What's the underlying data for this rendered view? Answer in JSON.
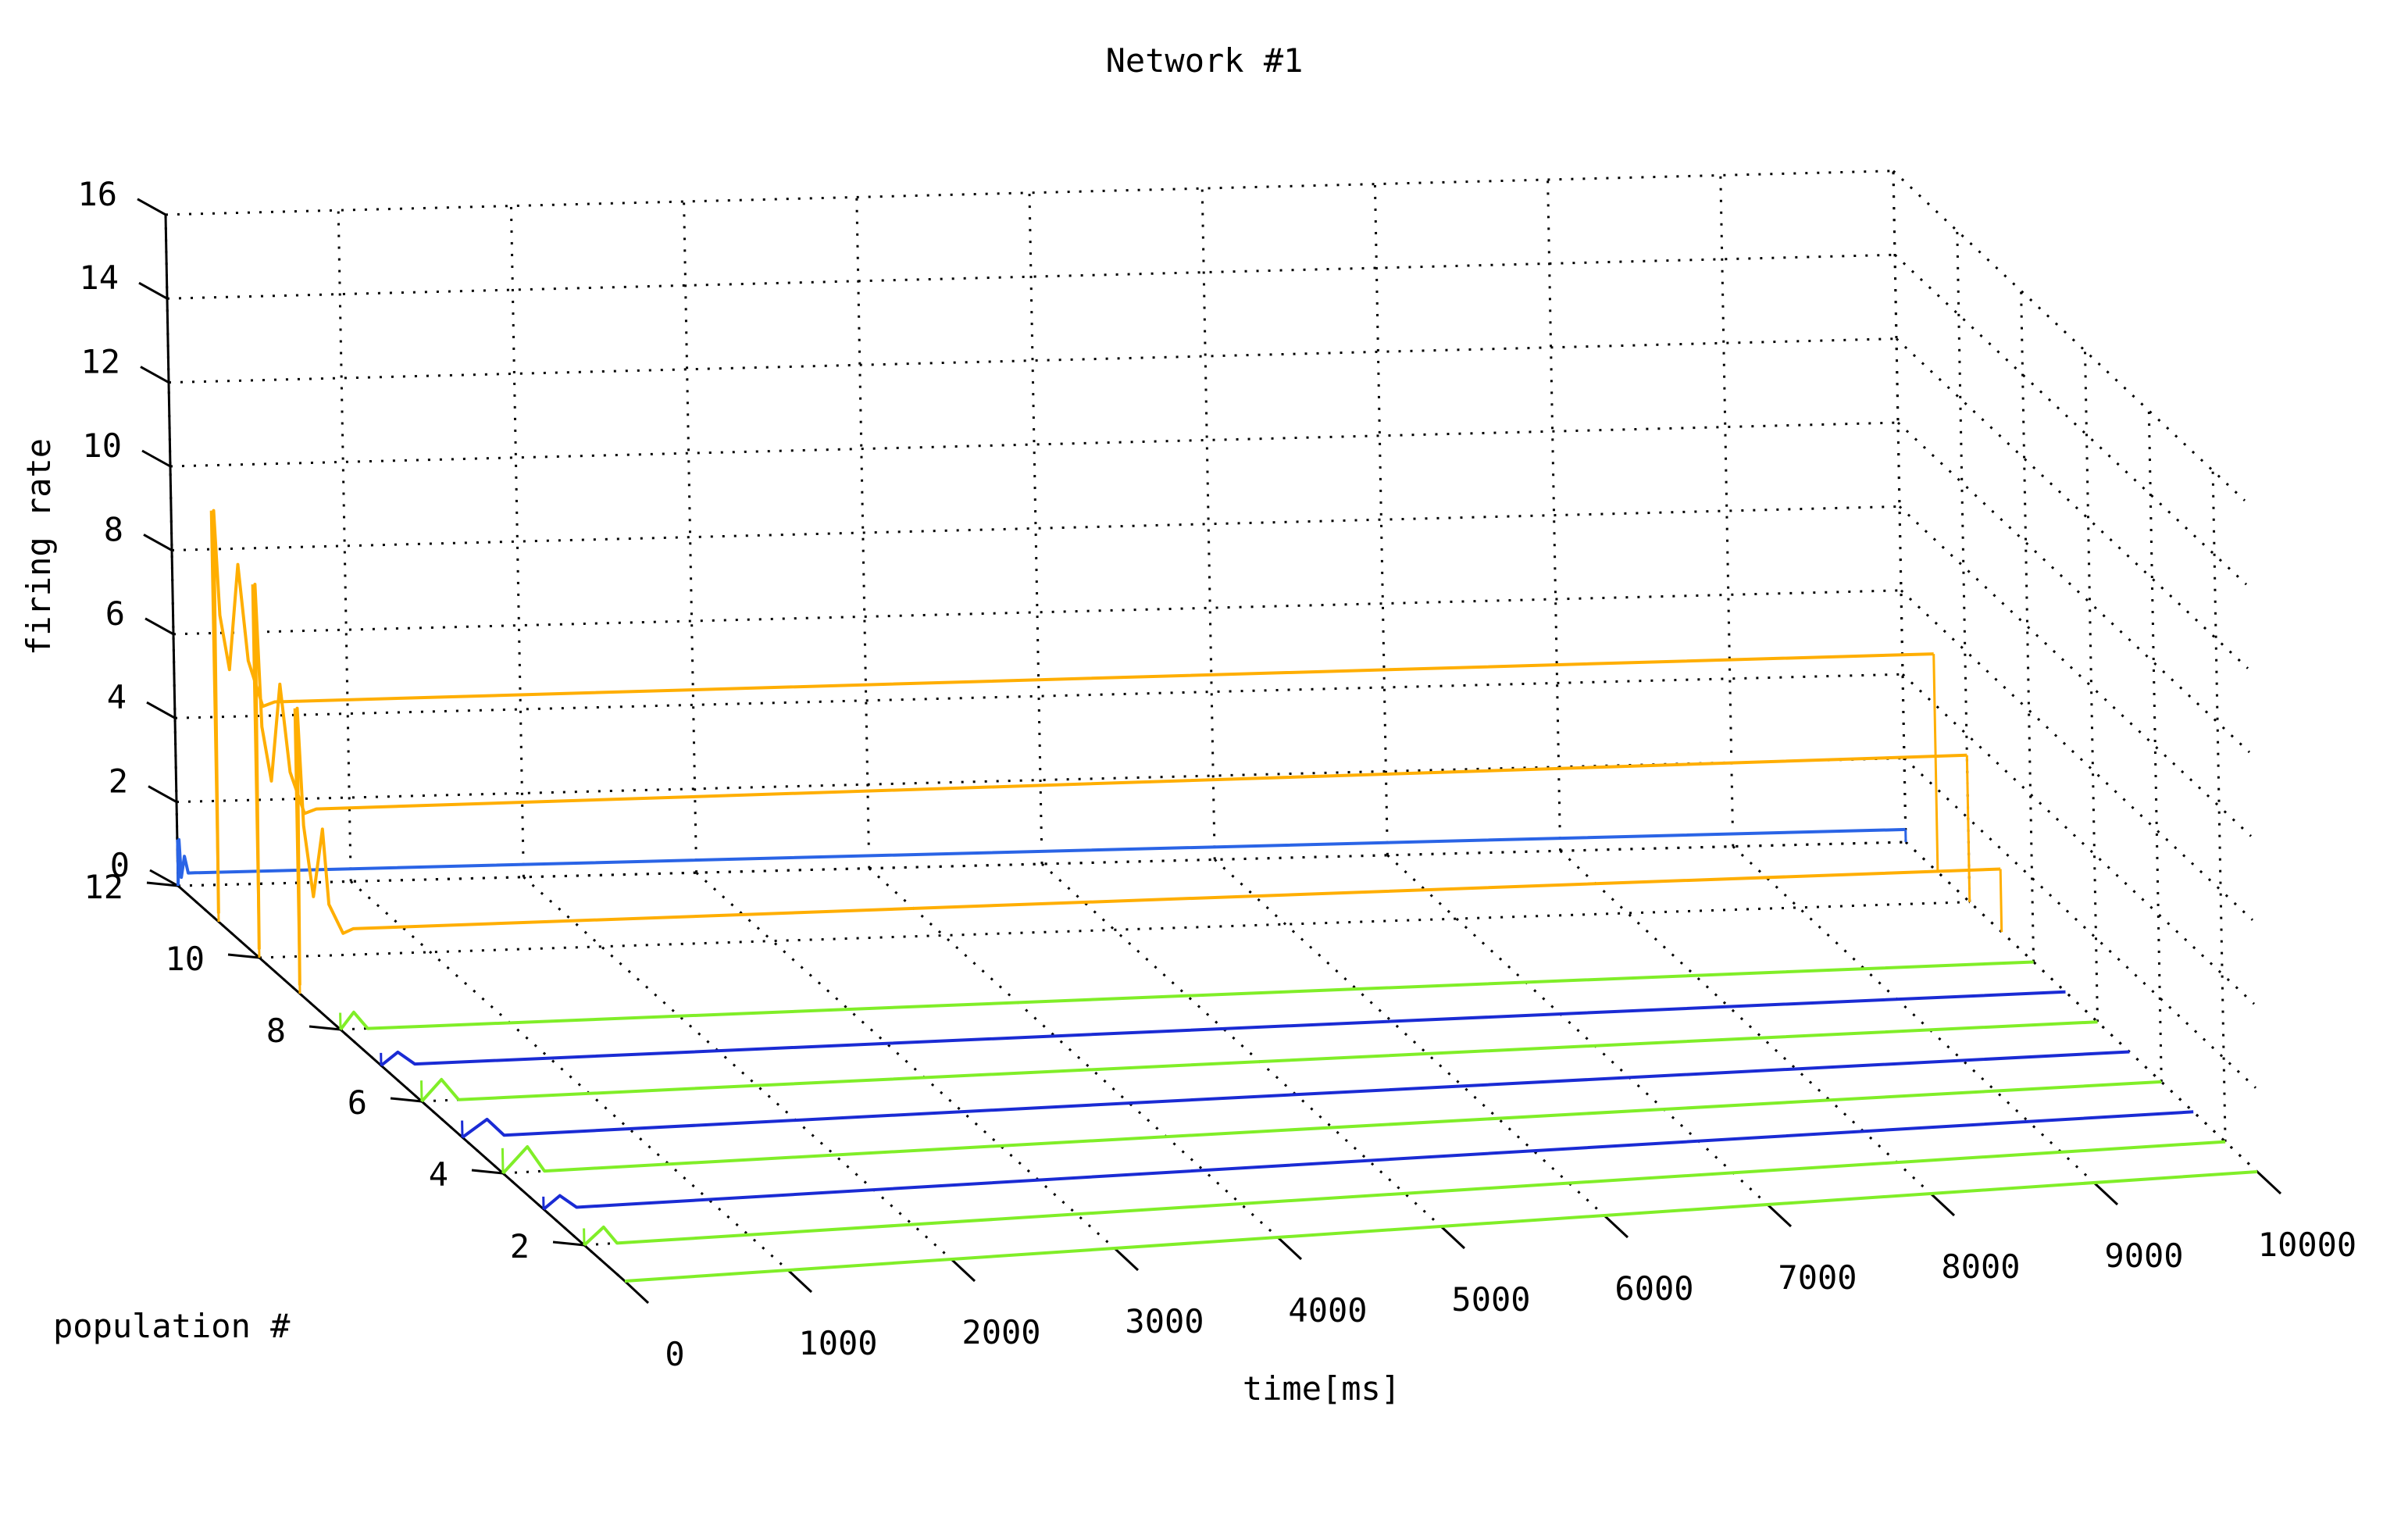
{
  "chart_data": {
    "type": "line",
    "projection": "3d-waterfall",
    "title": "Network #1",
    "xlabel": "time[ms]",
    "ylabel": "population #",
    "zlabel": "firing rate",
    "xlim": [
      0,
      10000
    ],
    "ylim": [
      1,
      12
    ],
    "zlim": [
      0,
      16
    ],
    "x_ticks": [
      "0",
      "1000",
      "2000",
      "3000",
      "4000",
      "5000",
      "6000",
      "7000",
      "8000",
      "9000",
      "10000"
    ],
    "y_ticks": [
      "2",
      "4",
      "6",
      "8",
      "10",
      "12"
    ],
    "z_ticks": [
      "0",
      "2",
      "4",
      "6",
      "8",
      "10",
      "12",
      "14",
      "16"
    ],
    "grid": true,
    "legend": "none",
    "colors": {
      "green": "#80ee28",
      "blue": "#1a2bd4",
      "orange": "#ffae00",
      "light_blue": "#2a64e6",
      "transient_yellow": "#c8f030",
      "grid": "#000000"
    },
    "series": [
      {
        "population": 1,
        "steady_rate": 0.0,
        "color": "green",
        "transient": [
          [
            0,
            0
          ],
          [
            500,
            0
          ],
          [
            800,
            0
          ]
        ]
      },
      {
        "population": 2,
        "steady_rate": 0.0,
        "color": "green",
        "transient": [
          [
            0,
            0
          ],
          [
            120,
            0.4
          ],
          [
            200,
            0
          ],
          [
            500,
            0
          ]
        ]
      },
      {
        "population": 3,
        "steady_rate": 0.0,
        "color": "blue",
        "transient": [
          [
            0,
            0
          ],
          [
            100,
            0.3
          ],
          [
            200,
            0
          ],
          [
            500,
            0
          ]
        ]
      },
      {
        "population": 4,
        "steady_rate": 0.0,
        "color": "green",
        "transient": [
          [
            0,
            0
          ],
          [
            150,
            0.6
          ],
          [
            250,
            0
          ],
          [
            500,
            0
          ]
        ]
      },
      {
        "population": 5,
        "steady_rate": 0.0,
        "color": "blue",
        "transient": [
          [
            0,
            0
          ],
          [
            150,
            0.4
          ],
          [
            250,
            0
          ],
          [
            500,
            0
          ]
        ]
      },
      {
        "population": 6,
        "steady_rate": 0.0,
        "color": "green",
        "transient": [
          [
            0,
            0
          ],
          [
            120,
            0.5
          ],
          [
            220,
            0
          ],
          [
            500,
            0
          ]
        ]
      },
      {
        "population": 7,
        "steady_rate": 0.0,
        "color": "blue",
        "transient": [
          [
            0,
            0
          ],
          [
            100,
            0.3
          ],
          [
            200,
            0
          ],
          [
            500,
            0
          ]
        ]
      },
      {
        "population": 8,
        "steady_rate": 0.0,
        "color": "green",
        "transient": [
          [
            0,
            0
          ],
          [
            80,
            0.4
          ],
          [
            160,
            0
          ],
          [
            500,
            0
          ]
        ]
      },
      {
        "population": 9,
        "steady_rate": 1.5,
        "color": "orange",
        "transient": [
          [
            0,
            0.2
          ],
          [
            15,
            6.8
          ],
          [
            40,
            4.0
          ],
          [
            90,
            2.3
          ],
          [
            150,
            3.9
          ],
          [
            180,
            2.1
          ],
          [
            260,
            1.4
          ],
          [
            320,
            1.5
          ],
          [
            400,
            1.5
          ]
        ]
      },
      {
        "population": 10,
        "steady_rate": 3.5,
        "color": "orange",
        "transient": [
          [
            0,
            0.2
          ],
          [
            15,
            8.9
          ],
          [
            40,
            5.5
          ],
          [
            90,
            4.2
          ],
          [
            150,
            6.5
          ],
          [
            200,
            4.4
          ],
          [
            280,
            3.4
          ],
          [
            350,
            3.5
          ],
          [
            420,
            3.5
          ]
        ]
      },
      {
        "population": 11,
        "steady_rate": 5.2,
        "color": "orange",
        "transient": [
          [
            0,
            0.2
          ],
          [
            15,
            9.8
          ],
          [
            40,
            7.3
          ],
          [
            90,
            6.0
          ],
          [
            150,
            8.5
          ],
          [
            200,
            6.2
          ],
          [
            280,
            5.1
          ],
          [
            350,
            5.2
          ],
          [
            420,
            5.2
          ]
        ]
      },
      {
        "population": 12,
        "steady_rate": 0.3,
        "color": "light_blue",
        "transient": [
          [
            0,
            0
          ],
          [
            10,
            1.1
          ],
          [
            20,
            0.2
          ],
          [
            40,
            0.7
          ],
          [
            60,
            0.3
          ],
          [
            100,
            0.3
          ]
        ]
      }
    ]
  }
}
